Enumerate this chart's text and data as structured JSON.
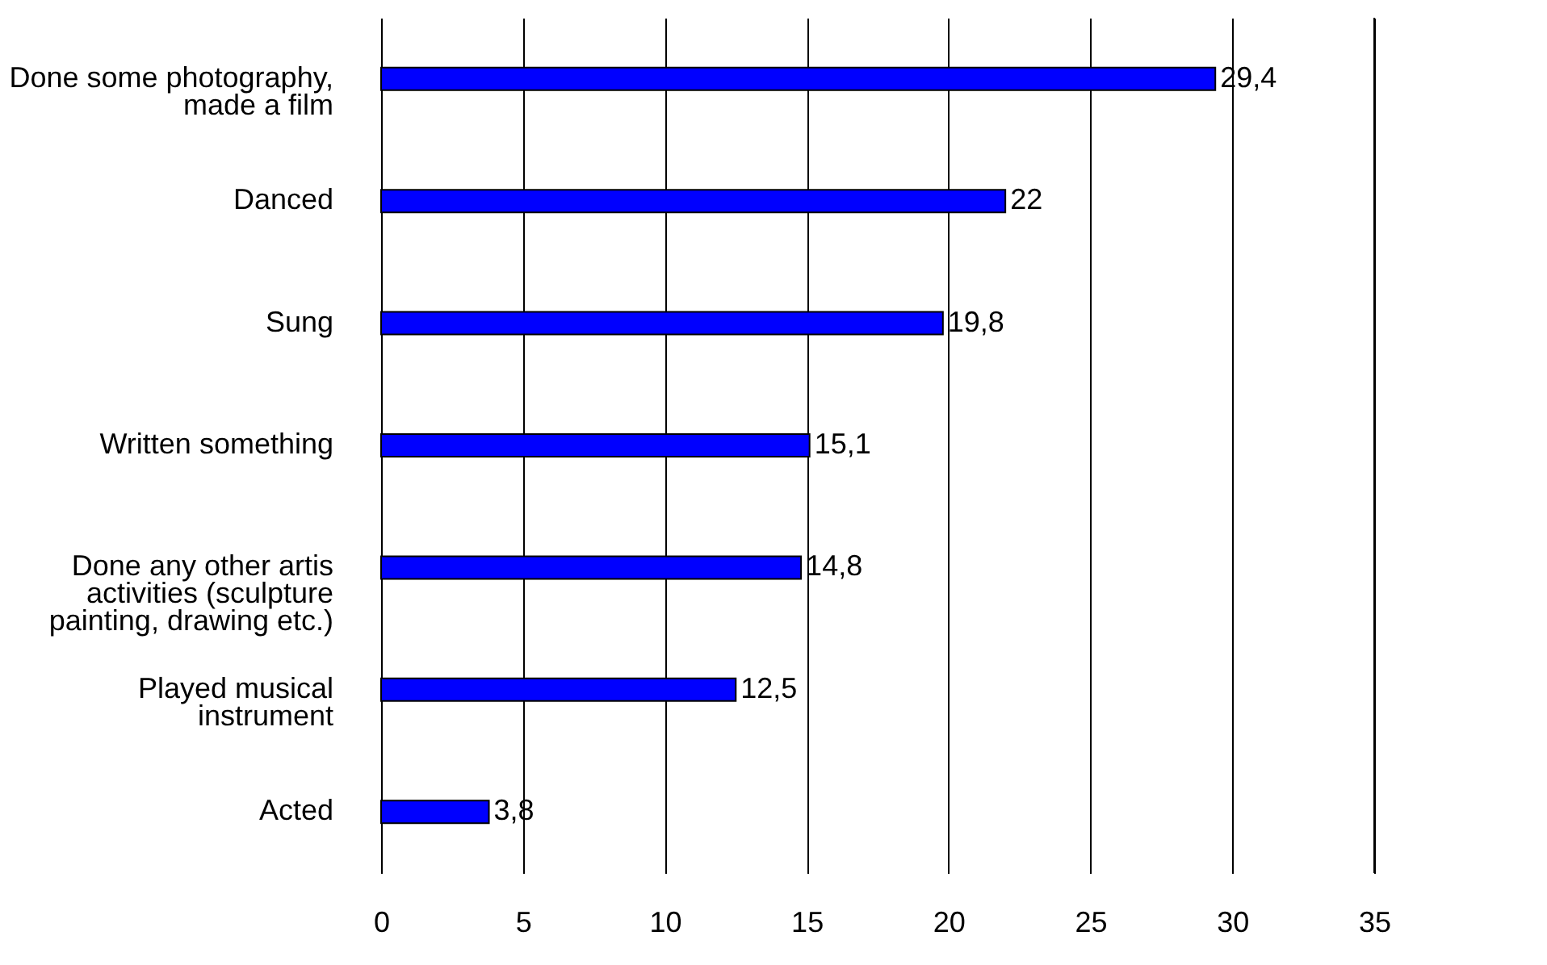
{
  "chart_data": {
    "type": "bar",
    "orientation": "horizontal",
    "categories": [
      "Done some photography, made a film",
      "Danced",
      "Sung",
      "Written something",
      "Done any other artis activities (sculpture painting, drawing etc.)",
      "Played musical instrument",
      "Acted"
    ],
    "values": [
      29.4,
      22,
      19.8,
      15.1,
      14.8,
      12.5,
      3.8
    ],
    "value_labels": [
      "29,4",
      "22",
      "19,8",
      "15,1",
      "14,8",
      "12,5",
      "3,8"
    ],
    "color": "#0000ff",
    "xlim": [
      0,
      35
    ],
    "xticks": [
      0,
      5,
      10,
      15,
      20,
      25,
      30,
      35
    ],
    "grid": "x"
  }
}
